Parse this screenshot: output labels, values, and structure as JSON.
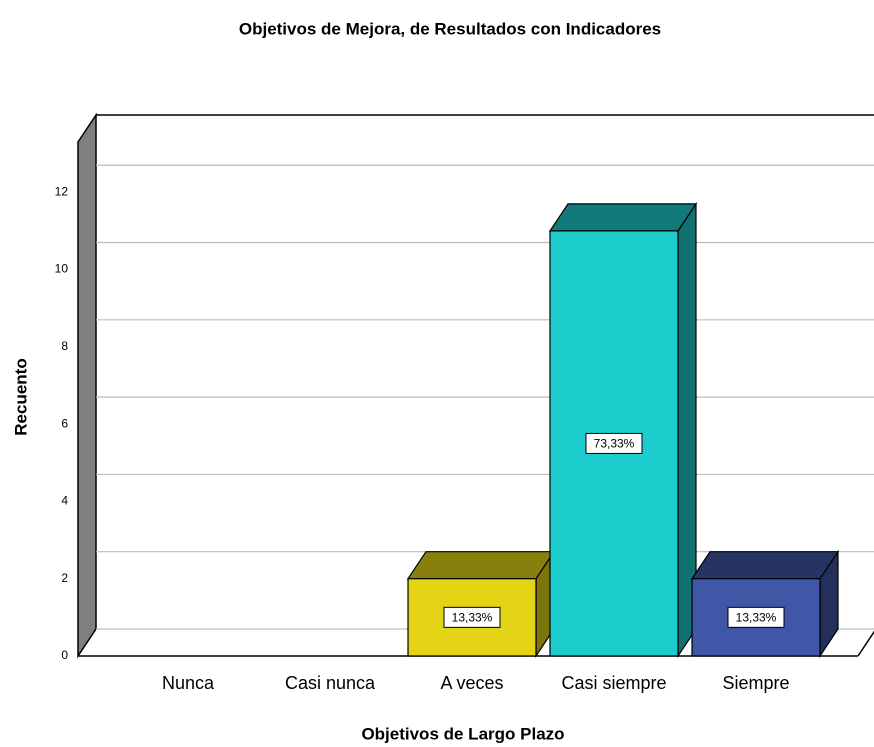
{
  "chart_data": {
    "type": "bar3d",
    "title": "Objetivos de Mejora, de Resultados con Indicadores",
    "x_label": "Objetivos de Largo Plazo",
    "y_label": "Recuento",
    "categories": [
      "Nunca",
      "Casi nunca",
      "A veces",
      "Casi siempre",
      "Siempre"
    ],
    "values": [
      0,
      0,
      2,
      11,
      2
    ],
    "colors": [
      "#e3d416",
      "#e3d416",
      "#e3d416",
      "#1dcdcd",
      "#3f57a6"
    ],
    "percentages": [
      null,
      null,
      13.33,
      73.33,
      13.33
    ],
    "percentage_labels": [
      null,
      null,
      "13,33%",
      "73,33%",
      "13,33%"
    ],
    "ylim": [
      0,
      13.3
    ],
    "yticks": [
      0,
      2,
      4,
      6,
      8,
      10,
      12
    ],
    "grid": true
  }
}
